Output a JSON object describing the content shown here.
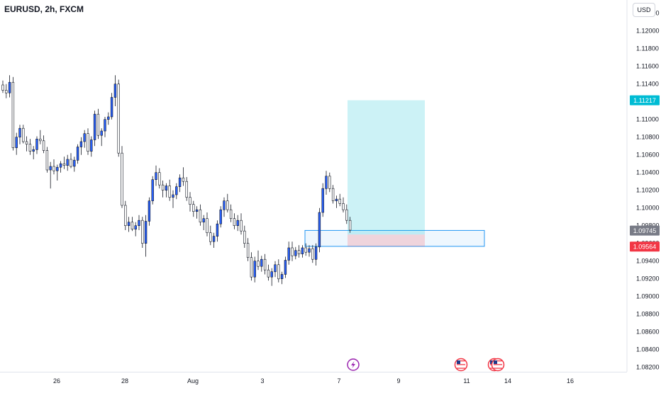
{
  "header": {
    "symbol_title": "EURUSD, 2h, FXCM",
    "currency_button": "USD"
  },
  "chart_data": {
    "type": "candlestick",
    "x_tick_labels": [
      "26",
      "28",
      "Aug",
      "3",
      "7",
      "9",
      "11",
      "14",
      "16"
    ],
    "y_tick_labels": [
      "1.12200",
      "1.12000",
      "1.11800",
      "1.11600",
      "1.11400",
      "1.11200",
      "1.11000",
      "1.10800",
      "1.10600",
      "1.10400",
      "1.10200",
      "1.10000",
      "1.09800",
      "1.09600",
      "1.09400",
      "1.09200",
      "1.09000",
      "1.08800",
      "1.08600",
      "1.08400",
      "1.08200"
    ],
    "ylim": [
      1.0815,
      1.1235
    ],
    "price_labels": {
      "take_profit": "1.11217",
      "current": "1.09745",
      "stop_loss": "1.09564"
    },
    "position_tool": {
      "type": "long",
      "entry": 1.097,
      "target": 1.11217,
      "stop": 1.09564
    },
    "support_zone": {
      "top": 1.09747,
      "bottom": 1.09567
    },
    "candles": [
      [
        1.1139,
        1.1144,
        1.113,
        1.1133
      ],
      [
        1.1133,
        1.114,
        1.1124,
        1.113
      ],
      [
        1.113,
        1.115,
        1.1125,
        1.1142
      ],
      [
        1.1142,
        1.1148,
        1.1065,
        1.1068
      ],
      [
        1.1068,
        1.1085,
        1.106,
        1.108
      ],
      [
        1.108,
        1.1094,
        1.1072,
        1.109
      ],
      [
        1.109,
        1.1094,
        1.1073,
        1.1075
      ],
      [
        1.1075,
        1.1081,
        1.1064,
        1.1072
      ],
      [
        1.1072,
        1.1078,
        1.106,
        1.1064
      ],
      [
        1.1064,
        1.107,
        1.1055,
        1.1066
      ],
      [
        1.1066,
        1.1081,
        1.1061,
        1.1078
      ],
      [
        1.1078,
        1.1088,
        1.1072,
        1.1076
      ],
      [
        1.1076,
        1.1082,
        1.1062,
        1.1065
      ],
      [
        1.1065,
        1.1069,
        1.104,
        1.1043
      ],
      [
        1.1043,
        1.1052,
        1.1022,
        1.1047
      ],
      [
        1.1047,
        1.1055,
        1.1038,
        1.1042
      ],
      [
        1.1042,
        1.1049,
        1.1031,
        1.1046
      ],
      [
        1.1046,
        1.1053,
        1.104,
        1.105
      ],
      [
        1.105,
        1.1058,
        1.1044,
        1.1048
      ],
      [
        1.1048,
        1.106,
        1.1042,
        1.1055
      ],
      [
        1.1055,
        1.1062,
        1.1045,
        1.1047
      ],
      [
        1.1047,
        1.1058,
        1.1041,
        1.1054
      ],
      [
        1.1054,
        1.1072,
        1.105,
        1.1069
      ],
      [
        1.1069,
        1.108,
        1.106,
        1.1075
      ],
      [
        1.1075,
        1.1088,
        1.1068,
        1.1084
      ],
      [
        1.1084,
        1.109,
        1.106,
        1.1064
      ],
      [
        1.1064,
        1.1081,
        1.1058,
        1.1077
      ],
      [
        1.1077,
        1.111,
        1.107,
        1.1106
      ],
      [
        1.1106,
        1.1112,
        1.1078,
        1.1082
      ],
      [
        1.1082,
        1.109,
        1.107,
        1.1087
      ],
      [
        1.1087,
        1.1103,
        1.108,
        1.11
      ],
      [
        1.11,
        1.1108,
        1.1094,
        1.1103
      ],
      [
        1.1103,
        1.113,
        1.11,
        1.1125
      ],
      [
        1.1125,
        1.115,
        1.1115,
        1.114
      ],
      [
        1.114,
        1.1145,
        1.1058,
        1.1062
      ],
      [
        1.1062,
        1.107,
        1.1,
        1.1003
      ],
      [
        1.1003,
        1.1008,
        1.0975,
        1.098
      ],
      [
        1.098,
        1.099,
        1.0973,
        1.0984
      ],
      [
        1.0984,
        1.099,
        1.0974,
        1.0976
      ],
      [
        1.0976,
        1.0984,
        1.0968,
        1.098
      ],
      [
        1.098,
        1.0992,
        1.0975,
        1.0986
      ],
      [
        1.0986,
        1.099,
        1.0955,
        1.096
      ],
      [
        1.096,
        1.0992,
        1.0945,
        1.0985
      ],
      [
        1.0985,
        1.1012,
        1.098,
        1.1008
      ],
      [
        1.1008,
        1.1036,
        1.1004,
        1.1032
      ],
      [
        1.1032,
        1.1048,
        1.1025,
        1.104
      ],
      [
        1.104,
        1.1045,
        1.1022,
        1.1026
      ],
      [
        1.1026,
        1.1031,
        1.1012,
        1.102
      ],
      [
        1.102,
        1.1028,
        1.1012,
        1.1025
      ],
      [
        1.1025,
        1.1032,
        1.1008,
        1.1012
      ],
      [
        1.1012,
        1.102,
        1.1,
        1.1015
      ],
      [
        1.1015,
        1.1028,
        1.101,
        1.1024
      ],
      [
        1.1024,
        1.1038,
        1.1018,
        1.1034
      ],
      [
        1.1034,
        1.1046,
        1.1025,
        1.103
      ],
      [
        1.103,
        1.1035,
        1.1008,
        1.1012
      ],
      [
        1.1012,
        1.1018,
        1.0996,
        1.1004
      ],
      [
        1.1004,
        1.1008,
        1.099,
        1.0996
      ],
      [
        1.0996,
        1.1002,
        1.0988,
        1.0998
      ],
      [
        1.0998,
        1.1004,
        1.098,
        1.0984
      ],
      [
        1.0984,
        1.0992,
        1.0975,
        1.0988
      ],
      [
        1.0988,
        1.0995,
        1.0968,
        1.0972
      ],
      [
        1.0972,
        1.098,
        1.0958,
        1.0962
      ],
      [
        1.0962,
        1.0972,
        1.0955,
        1.0968
      ],
      [
        1.0968,
        1.0986,
        1.0962,
        1.0982
      ],
      [
        1.0982,
        1.1002,
        1.0978,
        1.0998
      ],
      [
        1.0998,
        1.1012,
        1.099,
        1.1008
      ],
      [
        1.1008,
        1.1016,
        1.0995,
        1.0998
      ],
      [
        1.0998,
        1.1004,
        1.0984,
        1.0988
      ],
      [
        1.0988,
        1.0994,
        1.0976,
        1.098
      ],
      [
        1.098,
        1.0992,
        1.0974,
        1.0986
      ],
      [
        1.0986,
        1.0994,
        1.097,
        1.0974
      ],
      [
        1.0974,
        1.098,
        1.0955,
        1.096
      ],
      [
        1.096,
        1.0966,
        1.094,
        1.0944
      ],
      [
        1.0944,
        1.095,
        1.0918,
        1.0922
      ],
      [
        1.0922,
        1.0945,
        1.0916,
        1.094
      ],
      [
        1.094,
        1.0952,
        1.093,
        1.0934
      ],
      [
        1.0934,
        1.0946,
        1.0928,
        1.0942
      ],
      [
        1.0942,
        1.0948,
        1.0925,
        1.093
      ],
      [
        1.093,
        1.0936,
        1.0918,
        1.0922
      ],
      [
        1.0922,
        1.0932,
        1.0912,
        1.0928
      ],
      [
        1.0928,
        1.094,
        1.0922,
        1.0936
      ],
      [
        1.0936,
        1.0942,
        1.0916,
        1.092
      ],
      [
        1.092,
        1.0928,
        1.0914,
        1.0925
      ],
      [
        1.0925,
        1.0945,
        1.0921,
        1.0941
      ],
      [
        1.0941,
        1.0962,
        1.0936,
        1.0955
      ],
      [
        1.0955,
        1.0962,
        1.094,
        1.0946
      ],
      [
        1.0946,
        1.0956,
        1.0942,
        1.0952
      ],
      [
        1.0952,
        1.0958,
        1.0944,
        1.0948
      ],
      [
        1.0948,
        1.0958,
        1.0944,
        1.0955
      ],
      [
        1.0955,
        1.096,
        1.0946,
        1.095
      ],
      [
        1.095,
        1.0958,
        1.0945,
        1.0954
      ],
      [
        1.0954,
        1.0958,
        1.0938,
        1.0942
      ],
      [
        1.0942,
        1.096,
        1.0935,
        1.0956
      ],
      [
        1.0956,
        1.1,
        1.095,
        1.0995
      ],
      [
        1.0995,
        1.1028,
        1.099,
        1.1022
      ],
      [
        1.1022,
        1.1042,
        1.1015,
        1.1036
      ],
      [
        1.1036,
        1.104,
        1.1018,
        1.1022
      ],
      [
        1.1022,
        1.1026,
        1.1005,
        1.1008
      ],
      [
        1.1008,
        1.1014,
        1.1,
        1.101
      ],
      [
        1.101,
        1.1016,
        1.1002,
        1.1005
      ],
      [
        1.1005,
        1.1012,
        1.0995,
        1.0998
      ],
      [
        1.0998,
        1.1004,
        1.0982,
        1.0986
      ],
      [
        1.0986,
        1.099,
        1.0972,
        1.0975
      ]
    ]
  }
}
